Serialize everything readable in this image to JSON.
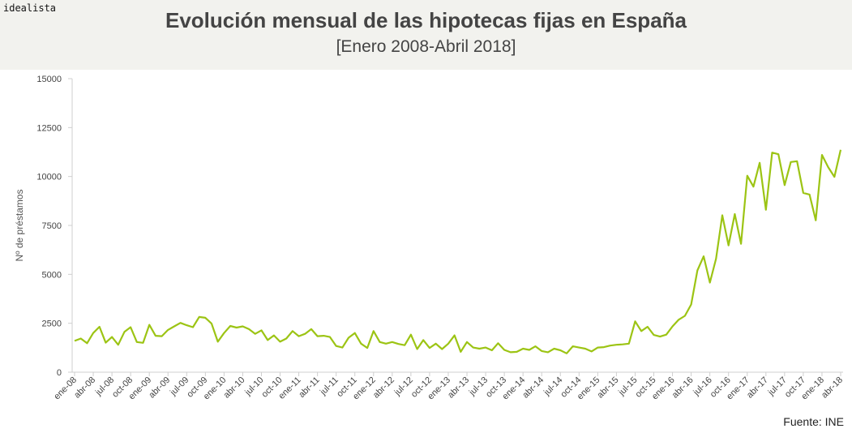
{
  "brand": "idealista",
  "source": "Fuente: INE",
  "chart_data": {
    "type": "line",
    "title": "Evolución mensual de las hipotecas fijas en España",
    "subtitle": "[Enero 2008-Abril 2018]",
    "xlabel": "",
    "ylabel": "Nº de préstamos",
    "ylim": [
      0,
      15000
    ],
    "yticks": [
      "0",
      "2500",
      "5000",
      "7500",
      "10000",
      "12500",
      "15000"
    ],
    "xtick_labels": [
      "ene-08",
      "abr-08",
      "jul-08",
      "oct-08",
      "ene-09",
      "abr-09",
      "jul-09",
      "oct-09",
      "ene-10",
      "abr-10",
      "jul-10",
      "oct-10",
      "ene-11",
      "abr-11",
      "jul-11",
      "oct-11",
      "ene-12",
      "abr-12",
      "jul-12",
      "oct-12",
      "ene-13",
      "abr-13",
      "jul-13",
      "oct-13",
      "ene-14",
      "abr-14",
      "jul-14",
      "oct-14",
      "ene-15",
      "abr-15",
      "jul-15",
      "oct-15",
      "ene-16",
      "abr-16",
      "jul-16",
      "oct-16",
      "ene-17",
      "abr-17",
      "jul-17",
      "oct-17",
      "ene-18",
      "abr-18"
    ],
    "line_color": "#9cc414",
    "grid": false,
    "series": [
      {
        "values": [
          1600,
          1720,
          1480,
          2000,
          2320,
          1510,
          1800,
          1400,
          2060,
          2300,
          1540,
          1500,
          2420,
          1860,
          1840,
          2160,
          2340,
          2520,
          2400,
          2300,
          2820,
          2780,
          2480,
          1560,
          2000,
          2360,
          2280,
          2340,
          2200,
          1960,
          2140,
          1640,
          1880,
          1560,
          1720,
          2100,
          1840,
          1960,
          2200,
          1840,
          1860,
          1800,
          1340,
          1260,
          1760,
          2000,
          1460,
          1240,
          2100,
          1540,
          1460,
          1540,
          1440,
          1380,
          1920,
          1180,
          1640,
          1240,
          1460,
          1180,
          1460,
          1880,
          1040,
          1540,
          1260,
          1200,
          1260,
          1120,
          1480,
          1140,
          1020,
          1040,
          1200,
          1140,
          1320,
          1080,
          1020,
          1200,
          1120,
          960,
          1320,
          1260,
          1200,
          1060,
          1260,
          1280,
          1360,
          1400,
          1420,
          1460,
          2600,
          2100,
          2320,
          1900,
          1820,
          1920,
          2340,
          2680,
          2880,
          3460,
          5200,
          5920,
          4580,
          5800,
          8020,
          6480,
          8080,
          6560,
          10040,
          9480,
          10700,
          8300,
          11220,
          11140,
          9560,
          10740,
          10780,
          9160,
          9080,
          7760,
          11100,
          10480,
          9980,
          11360
        ]
      }
    ]
  }
}
